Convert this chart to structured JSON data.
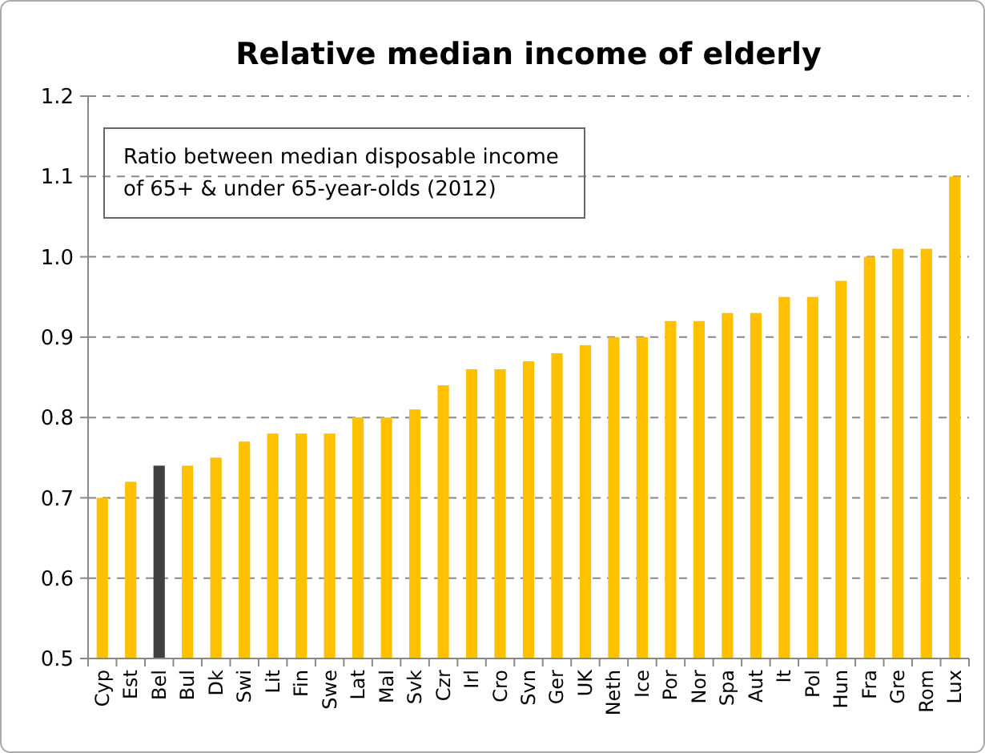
{
  "chart_data": {
    "type": "bar",
    "title": "Relative median income of elderly",
    "categories": [
      "Cyp",
      "Est",
      "Bel",
      "Bul",
      "Dk",
      "Swi",
      "Lit",
      "Fin",
      "Swe",
      "Lat",
      "Mal",
      "Svk",
      "Czr",
      "Irl",
      "Cro",
      "Svn",
      "Ger",
      "UK",
      "Neth",
      "Ice",
      "Por",
      "Nor",
      "Spa",
      "Aut",
      "It",
      "Pol",
      "Hun",
      "Fra",
      "Gre",
      "Rom",
      "Lux"
    ],
    "values": [
      0.7,
      0.72,
      0.74,
      0.74,
      0.75,
      0.77,
      0.78,
      0.78,
      0.78,
      0.8,
      0.8,
      0.81,
      0.84,
      0.86,
      0.86,
      0.87,
      0.88,
      0.89,
      0.9,
      0.9,
      0.92,
      0.92,
      0.93,
      0.93,
      0.95,
      0.95,
      0.97,
      1.0,
      1.01,
      1.01,
      1.1
    ],
    "colors": [
      "#ffc000",
      "#ffc000",
      "#404040",
      "#ffc000",
      "#ffc000",
      "#ffc000",
      "#ffc000",
      "#ffc000",
      "#ffc000",
      "#ffc000",
      "#ffc000",
      "#ffc000",
      "#ffc000",
      "#ffc000",
      "#ffc000",
      "#ffc000",
      "#ffc000",
      "#ffc000",
      "#ffc000",
      "#ffc000",
      "#ffc000",
      "#ffc000",
      "#ffc000",
      "#ffc000",
      "#ffc000",
      "#ffc000",
      "#ffc000",
      "#ffc000",
      "#ffc000",
      "#ffc000",
      "#ffc000"
    ],
    "ylim": [
      0.5,
      1.2
    ],
    "yticks": [
      {
        "value": 0.5,
        "label": "0.5"
      },
      {
        "value": 0.6,
        "label": "0.6"
      },
      {
        "value": 0.7,
        "label": "0.7"
      },
      {
        "value": 0.8,
        "label": "0.8"
      },
      {
        "value": 0.9,
        "label": "0.9"
      },
      {
        "value": 1.0,
        "label": "1.0"
      },
      {
        "value": 1.1,
        "label": "1.1"
      },
      {
        "value": 1.2,
        "label": "1.2"
      }
    ],
    "grid": "y",
    "annotations": [
      "Ratio between median disposable income of 65+ & under 65-year-olds (2012)"
    ]
  }
}
